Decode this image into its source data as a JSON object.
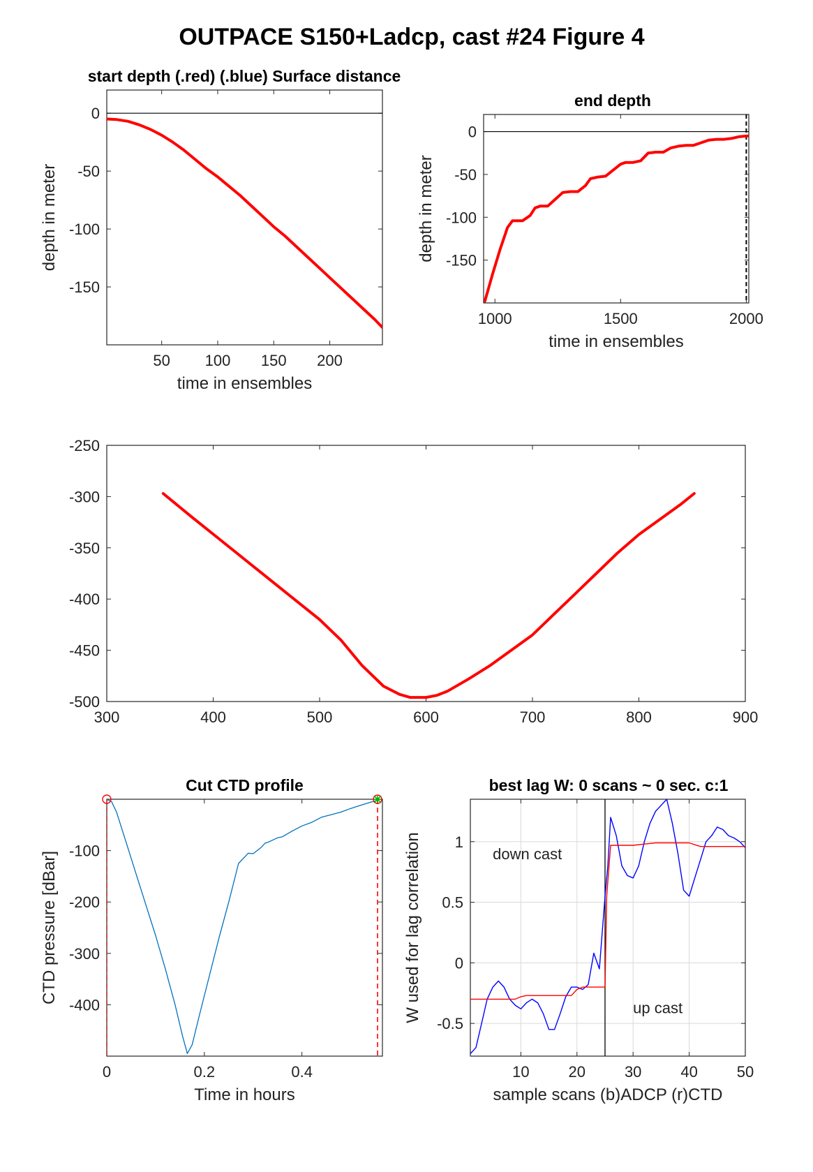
{
  "figure_title": "OUTPACE S150+Ladcp, cast #24   Figure 4",
  "chart_data": [
    {
      "id": "start",
      "type": "line",
      "title": "start depth (.red) (.blue) Surface distance",
      "xlabel": "time in ensembles",
      "ylabel": "depth in meter",
      "xlim": [
        1,
        247
      ],
      "ylim": [
        -200,
        20
      ],
      "xticks": [
        50,
        100,
        150,
        200
      ],
      "yticks": [
        0,
        -50,
        -100,
        -150
      ],
      "grid": false,
      "series": [
        {
          "color": "#ff0000",
          "width": 4,
          "x": [
            1,
            10,
            20,
            30,
            40,
            50,
            60,
            70,
            80,
            90,
            100,
            110,
            120,
            130,
            140,
            150,
            160,
            170,
            180,
            190,
            200,
            210,
            220,
            230,
            240,
            247
          ],
          "y": [
            -5,
            -5.5,
            -7,
            -10,
            -14,
            -19,
            -25,
            -32,
            -40,
            -48,
            -55,
            -63,
            -71,
            -80,
            -89,
            -98,
            -106,
            -115,
            -124,
            -133,
            -142,
            -151,
            -160,
            -169,
            -178,
            -185
          ]
        }
      ],
      "hlines": [
        {
          "y": 0,
          "color": "#000000",
          "width": 1.2
        }
      ]
    },
    {
      "id": "end",
      "type": "line",
      "title": "end depth",
      "xlabel": "time in ensembles",
      "ylabel": "depth in meter",
      "xlim": [
        955,
        2010
      ],
      "ylim": [
        -200,
        20
      ],
      "xticks": [
        1000,
        1500,
        2000
      ],
      "yticks": [
        0,
        -50,
        -100,
        -150
      ],
      "grid": false,
      "series": [
        {
          "color": "#ff0000",
          "width": 4,
          "x": [
            960,
            990,
            1020,
            1050,
            1070,
            1090,
            1110,
            1140,
            1160,
            1180,
            1210,
            1240,
            1270,
            1300,
            1330,
            1360,
            1380,
            1410,
            1440,
            1470,
            1500,
            1520,
            1550,
            1580,
            1610,
            1640,
            1670,
            1700,
            1730,
            1760,
            1790,
            1820,
            1850,
            1880,
            1910,
            1940,
            1970,
            2005
          ],
          "y": [
            -198,
            -167,
            -138,
            -112,
            -104,
            -104,
            -104,
            -98,
            -89,
            -87,
            -87,
            -79,
            -71,
            -70,
            -70,
            -63,
            -55,
            -53,
            -52,
            -45,
            -38,
            -36,
            -36,
            -34,
            -25,
            -24,
            -24,
            -19,
            -17,
            -16,
            -16,
            -13,
            -10,
            -9,
            -9,
            -8,
            -6,
            -5
          ]
        }
      ],
      "hlines": [
        {
          "y": 0,
          "color": "#000000",
          "width": 1.2
        }
      ],
      "vlines": [
        {
          "x": 2000,
          "color": "#000000",
          "width": 2,
          "dash": "6,4"
        }
      ]
    },
    {
      "id": "mid",
      "type": "line",
      "title": "",
      "xlabel": "",
      "ylabel": "",
      "xlim": [
        300,
        900
      ],
      "ylim": [
        -500,
        -250
      ],
      "xticks": [
        300,
        400,
        500,
        600,
        700,
        800,
        900
      ],
      "yticks": [
        -250,
        -300,
        -350,
        -400,
        -450,
        -500
      ],
      "grid": false,
      "series": [
        {
          "color": "#ff0000",
          "width": 4,
          "x": [
            353,
            380,
            410,
            440,
            470,
            500,
            520,
            540,
            560,
            575,
            585,
            600,
            610,
            620,
            640,
            660,
            680,
            700,
            720,
            740,
            760,
            780,
            800,
            820,
            840,
            852
          ],
          "y": [
            -297,
            -320,
            -345,
            -370,
            -395,
            -420,
            -440,
            -465,
            -485,
            -493,
            -496,
            -496,
            -494,
            -490,
            -478,
            -465,
            -450,
            -435,
            -415,
            -395,
            -375,
            -355,
            -337,
            -322,
            -307,
            -297
          ]
        }
      ]
    },
    {
      "id": "ctd",
      "type": "line",
      "title": "Cut CTD profile",
      "xlabel": "Time in hours",
      "ylabel": "CTD pressure [dBar]",
      "xlim": [
        0,
        0.565
      ],
      "ylim": [
        -500,
        0
      ],
      "xticks": [
        0,
        0.2,
        0.4
      ],
      "yticks": [
        -100,
        -200,
        -300,
        -400
      ],
      "grid": false,
      "series": [
        {
          "color": "#0072bd",
          "width": 1.3,
          "x": [
            0,
            0.01,
            0.02,
            0.04,
            0.06,
            0.08,
            0.1,
            0.12,
            0.14,
            0.155,
            0.165,
            0.175,
            0.19,
            0.21,
            0.23,
            0.25,
            0.27,
            0.29,
            0.3,
            0.315,
            0.325,
            0.33,
            0.35,
            0.36,
            0.38,
            0.4,
            0.42,
            0.44,
            0.46,
            0.48,
            0.5,
            0.52,
            0.54,
            0.555
          ],
          "y": [
            0,
            -5,
            -25,
            -85,
            -145,
            -205,
            -265,
            -330,
            -400,
            -460,
            -495,
            -478,
            -420,
            -345,
            -270,
            -200,
            -125,
            -105,
            -106,
            -95,
            -85,
            -84,
            -75,
            -73,
            -62,
            -52,
            -45,
            -35,
            -30,
            -25,
            -18,
            -12,
            -6,
            -2
          ]
        }
      ],
      "vlines": [
        {
          "x": 0,
          "color": "#ff0000",
          "width": 1.6,
          "dash": "7,5"
        },
        {
          "x": 0.555,
          "color": "#ff0000",
          "width": 1.6,
          "dash": "7,5"
        }
      ],
      "markers": [
        {
          "x": 0,
          "y": 0,
          "shape": "circle",
          "color": "#ff0000"
        },
        {
          "x": 0.555,
          "y": 0,
          "shape": "circle",
          "color": "#ff0000"
        },
        {
          "x": 0.555,
          "y": 0,
          "shape": "star",
          "color": "#00b000"
        }
      ]
    },
    {
      "id": "lag",
      "type": "line",
      "title": "best lag W: 0 scans ~ 0 sec.  c:1",
      "xlabel": "sample scans (b)ADCP (r)CTD",
      "ylabel": "W used for lag correlation",
      "xlim": [
        1,
        50
      ],
      "ylim": [
        -0.77,
        1.35
      ],
      "xticks": [
        10,
        20,
        30,
        40,
        50
      ],
      "yticks": [
        -0.5,
        0,
        0.5,
        1
      ],
      "grid": true,
      "series": [
        {
          "color": "#0000ff",
          "width": 1.4,
          "x": [
            1,
            2,
            3,
            4,
            5,
            6,
            7,
            8,
            9,
            10,
            11,
            12,
            13,
            14,
            15,
            16,
            17,
            18,
            19,
            20,
            21,
            22,
            23,
            24,
            25,
            25.5,
            26,
            27,
            28,
            29,
            30,
            31,
            32,
            33,
            34,
            35,
            36,
            37,
            38,
            39,
            40,
            41,
            42,
            43,
            44,
            45,
            46,
            47,
            48,
            49,
            50
          ],
          "y": [
            -0.75,
            -0.7,
            -0.5,
            -0.3,
            -0.2,
            -0.15,
            -0.2,
            -0.3,
            -0.35,
            -0.38,
            -0.33,
            -0.3,
            -0.33,
            -0.42,
            -0.55,
            -0.55,
            -0.42,
            -0.28,
            -0.2,
            -0.2,
            -0.22,
            -0.18,
            0.08,
            -0.05,
            0.55,
            0.8,
            1.2,
            1.05,
            0.8,
            0.72,
            0.7,
            0.8,
            1.0,
            1.15,
            1.25,
            1.3,
            1.35,
            1.15,
            0.9,
            0.6,
            0.55,
            0.7,
            0.85,
            1.0,
            1.05,
            1.12,
            1.1,
            1.05,
            1.03,
            1.0,
            0.95
          ]
        },
        {
          "color": "#ff0000",
          "width": 1.4,
          "x": [
            1,
            5,
            9,
            10,
            11,
            19,
            20,
            21,
            25,
            25.3,
            26,
            30,
            32,
            34,
            36,
            40,
            42,
            50
          ],
          "y": [
            -0.3,
            -0.3,
            -0.3,
            -0.28,
            -0.27,
            -0.27,
            -0.22,
            -0.2,
            -0.2,
            0.55,
            0.97,
            0.97,
            0.98,
            0.99,
            0.99,
            0.99,
            0.96,
            0.96
          ]
        }
      ],
      "vlines": [
        {
          "x": 25,
          "color": "#000000",
          "width": 1.3
        }
      ],
      "annotations": [
        {
          "text": "down cast",
          "x": 5,
          "y": 0.9
        },
        {
          "text": "up cast",
          "x": 30,
          "y": -0.37
        }
      ]
    }
  ]
}
